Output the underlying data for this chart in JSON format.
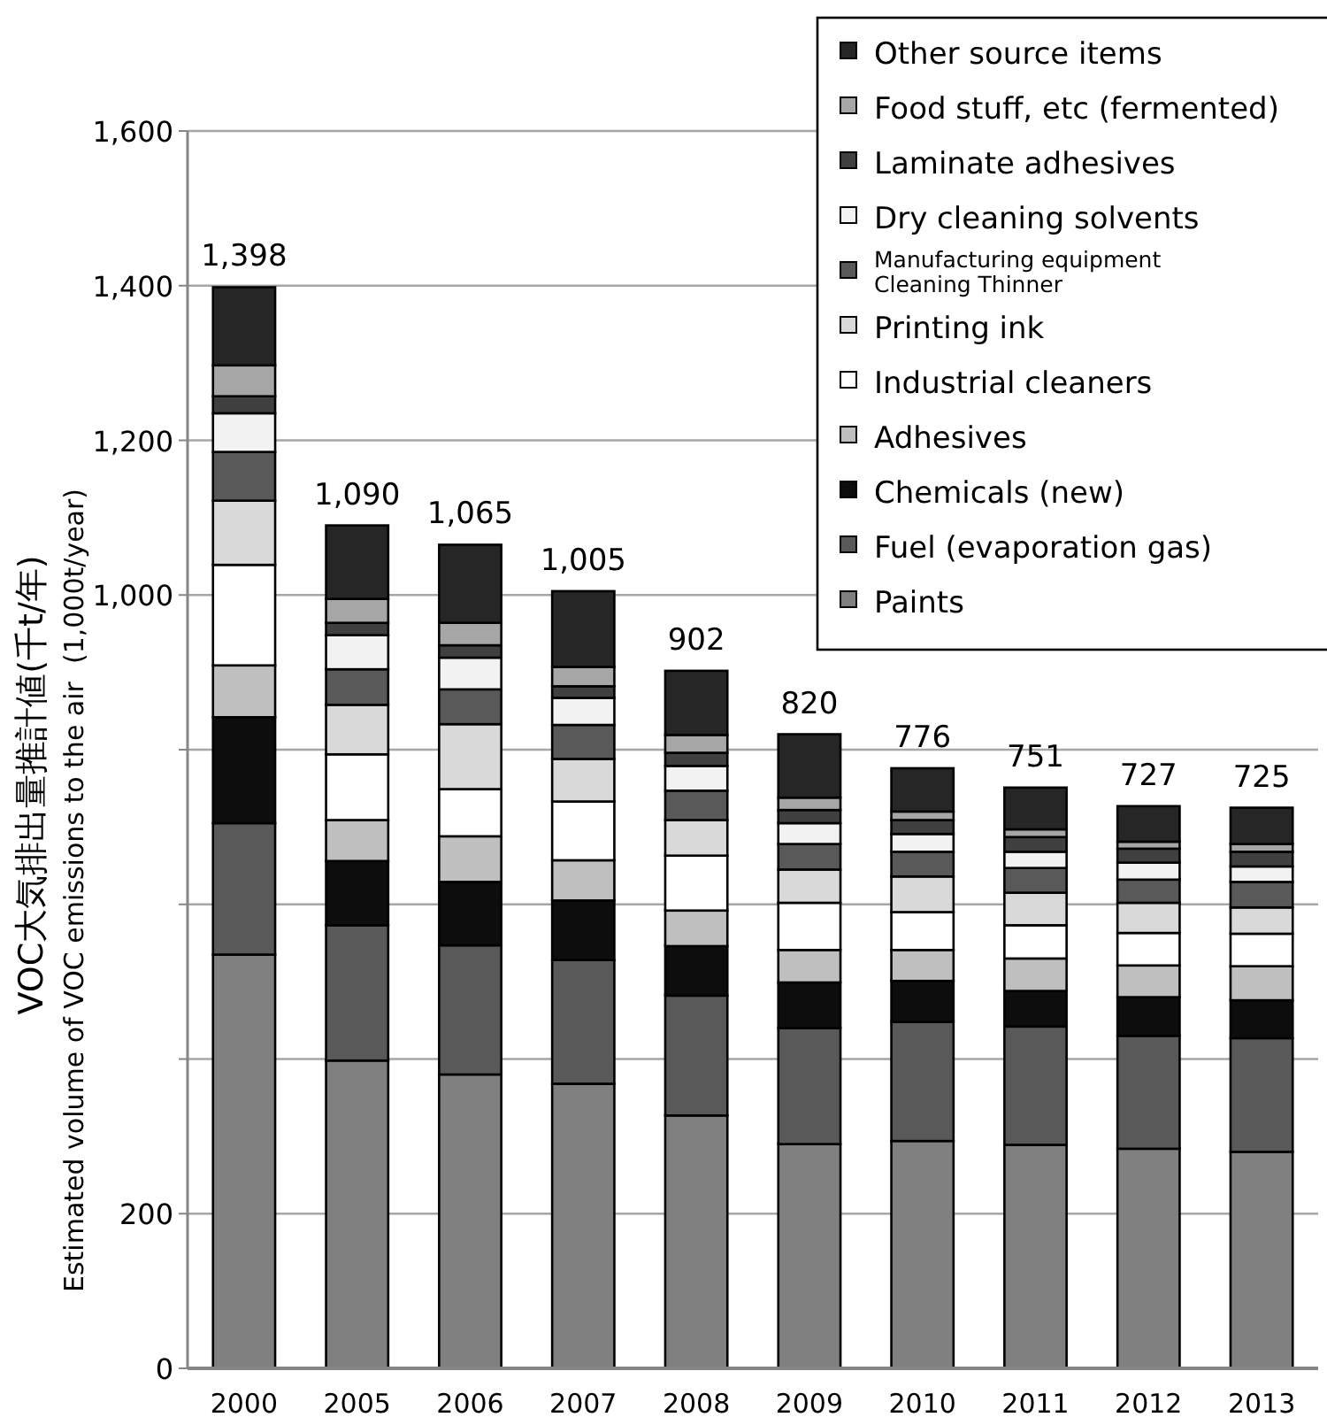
{
  "chart_data": {
    "type": "bar",
    "stacked": true,
    "ylabel": "VOC大気排出量推計値(千t/年)",
    "annotations": [
      "Estimated volume of VOC emissions to the air",
      "(1,000t/year)"
    ],
    "categories": [
      "2000",
      "2005",
      "2006",
      "2007",
      "2008",
      "2009",
      "2010",
      "2011",
      "2012",
      "2013"
    ],
    "series": [
      {
        "name": "Paints",
        "color": "#808080",
        "values": [
          535,
          398,
          380,
          368,
          327,
          290,
          294,
          289,
          284,
          280
        ]
      },
      {
        "name": "Fuel (evaporation gas)",
        "color": "#595959",
        "values": [
          170,
          175,
          167,
          160,
          155,
          150,
          154,
          153,
          146,
          147
        ]
      },
      {
        "name": "Chemicals (new)",
        "color": "#0d0d0d",
        "values": [
          137,
          83,
          82,
          77,
          64,
          59,
          53,
          46,
          50,
          49
        ]
      },
      {
        "name": "Adhesives",
        "color": "#bfbfbf",
        "values": [
          67,
          53,
          59,
          52,
          46,
          42,
          40,
          42,
          41,
          44
        ]
      },
      {
        "name": "Industrial cleaners",
        "color": "#ffffff",
        "values": [
          130,
          85,
          61,
          76,
          71,
          61,
          49,
          43,
          42,
          42
        ]
      },
      {
        "name": "Printing ink",
        "color": "#d9d9d9",
        "values": [
          83,
          64,
          84,
          55,
          46,
          43,
          46,
          42,
          39,
          34
        ]
      },
      {
        "name": "Manufacturing equipment Cleaning Thinner",
        "color": "#595959",
        "values": [
          63,
          46,
          45,
          44,
          38,
          33,
          32,
          32,
          30,
          33
        ]
      },
      {
        "name": "Dry cleaning solvents",
        "color": "#f2f2f2",
        "values": [
          50,
          44,
          41,
          35,
          32,
          27,
          23,
          21,
          22,
          20
        ]
      },
      {
        "name": "Laminate adhesives",
        "color": "#404040",
        "values": [
          22,
          16,
          16,
          15,
          17,
          17,
          18,
          19,
          18,
          19
        ]
      },
      {
        "name": "Food stuff, etc (fermented)",
        "color": "#a6a6a6",
        "values": [
          40,
          31,
          29,
          25,
          23,
          16,
          11,
          10,
          9,
          10
        ]
      },
      {
        "name": "Other source items",
        "color": "#262626",
        "values": [
          101,
          95,
          101,
          98,
          83,
          82,
          56,
          54,
          46,
          47
        ]
      }
    ],
    "totals": [
      "1,398",
      "1,090",
      "1,065",
      "1,005",
      "902",
      "820",
      "776",
      "751",
      "727",
      "725"
    ],
    "ylim": [
      0,
      1600
    ],
    "yticks": [
      0,
      200,
      {
        "value": 400,
        "label": null
      },
      {
        "value": 600,
        "label": null
      },
      {
        "value": 800,
        "label": null
      },
      {
        "value": 1000,
        "label": "1,000"
      },
      {
        "value": 1200,
        "label": "1,200"
      },
      {
        "value": 1400,
        "label": "1,400"
      },
      {
        "value": 1600,
        "label": "1,600"
      }
    ],
    "grid": "y",
    "legend": "top right"
  }
}
